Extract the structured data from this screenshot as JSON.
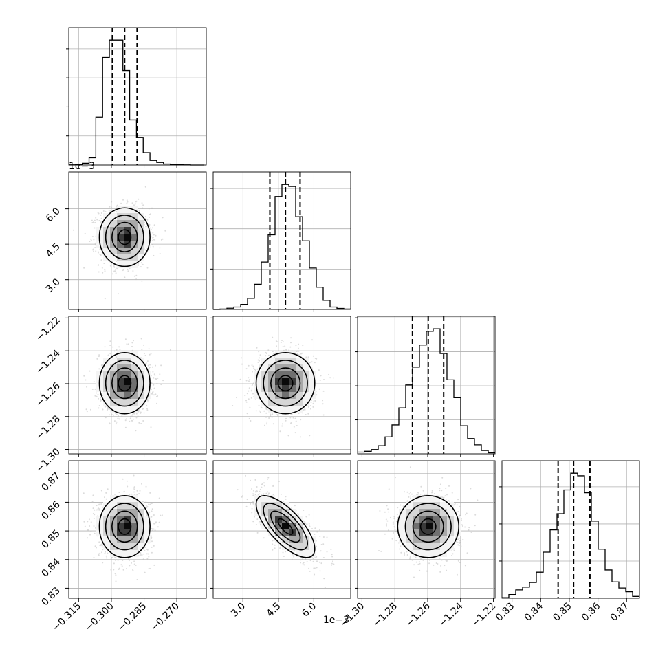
{
  "chart_data": {
    "type": "corner",
    "colors": {
      "frame": "#000000",
      "grid": "#b0b0b0",
      "points": "#bdbdbd",
      "hist": "#000000"
    },
    "grid": true,
    "parameters": [
      {
        "id": "p0",
        "range": [
          -0.3195,
          -0.2565
        ],
        "ticks": [
          -0.315,
          -0.3,
          -0.285,
          -0.27
        ],
        "tick_labels": [
          "−0.315",
          "−0.300",
          "−0.285",
          "−0.270"
        ]
      },
      {
        "id": "p1",
        "range": [
          0.00174,
          0.00756
        ],
        "ticks": [
          0.003,
          0.0045,
          0.006
        ],
        "tick_labels": [
          "3.0",
          "4.5",
          "6.0"
        ],
        "offset_label": "1e−3"
      },
      {
        "id": "p2",
        "range": [
          -1.3027,
          -1.219
        ],
        "ticks": [
          -1.3,
          -1.28,
          -1.26,
          -1.24,
          -1.22
        ],
        "tick_labels": [
          "−1.30",
          "−1.28",
          "−1.26",
          "−1.24",
          "−1.22"
        ]
      },
      {
        "id": "p3",
        "range": [
          0.8265,
          0.8745
        ],
        "ticks": [
          0.83,
          0.84,
          0.85,
          0.86,
          0.87
        ],
        "tick_labels": [
          "0.83",
          "0.84",
          "0.85",
          "0.86",
          "0.87"
        ]
      }
    ],
    "marginals": [
      {
        "param": 0,
        "quantiles": [
          -0.2995,
          -0.2939,
          -0.2882
        ],
        "edges": [
          -0.3195,
          -0.3164,
          -0.3133,
          -0.3102,
          -0.3071,
          -0.304,
          -0.3009,
          -0.2978,
          -0.2947,
          -0.2916,
          -0.2885,
          -0.2854,
          -0.2823,
          -0.2792,
          -0.2761,
          -0.273,
          -0.2699,
          -0.2668,
          -0.2637,
          -0.2606,
          -0.2575
        ],
        "counts": [
          1,
          3,
          12,
          50,
          330,
          740,
          860,
          860,
          650,
          310,
          190,
          85,
          32,
          18,
          7,
          3,
          2,
          1,
          0,
          0
        ]
      },
      {
        "param": 1,
        "quantiles": [
          0.00414,
          0.0048,
          0.00542
        ],
        "edges": [
          0.00174,
          0.002031,
          0.002322,
          0.002613,
          0.002904,
          0.003195,
          0.003486,
          0.003777,
          0.004068,
          0.004359,
          0.00465,
          0.004941,
          0.005232,
          0.005523,
          0.005814,
          0.006105,
          0.006396,
          0.006687,
          0.006978,
          0.007269,
          0.00756
        ],
        "counts": [
          0,
          2,
          6,
          12,
          25,
          55,
          125,
          235,
          370,
          560,
          620,
          610,
          460,
          340,
          205,
          110,
          45,
          12,
          5,
          2
        ]
      },
      {
        "param": 2,
        "quantiles": [
          -1.2693,
          -1.2597,
          -1.2503
        ],
        "edges": [
          -1.3027,
          -1.29852,
          -1.29433,
          -1.29015,
          -1.28596,
          -1.28178,
          -1.27759,
          -1.27341,
          -1.26922,
          -1.26504,
          -1.26085,
          -1.25667,
          -1.25248,
          -1.2483,
          -1.24411,
          -1.23993,
          -1.23574,
          -1.23156,
          -1.22737,
          -1.22319,
          -1.219
        ],
        "counts": [
          10,
          15,
          25,
          48,
          100,
          170,
          270,
          405,
          510,
          640,
          720,
          735,
          590,
          435,
          330,
          165,
          90,
          53,
          20,
          6
        ]
      },
      {
        "param": 3,
        "quantiles": [
          0.8461,
          0.8515,
          0.8572
        ],
        "edges": [
          0.8265,
          0.8289,
          0.8313,
          0.8337,
          0.8361,
          0.8385,
          0.8409,
          0.8433,
          0.8457,
          0.8481,
          0.8505,
          0.8529,
          0.8553,
          0.8577,
          0.8601,
          0.8625,
          0.8649,
          0.8673,
          0.8697,
          0.8721,
          0.8745
        ],
        "counts": [
          3,
          20,
          45,
          60,
          85,
          140,
          248,
          368,
          455,
          583,
          673,
          659,
          568,
          415,
          264,
          152,
          88,
          55,
          35,
          10
        ]
      }
    ],
    "joints": [
      {
        "x": 0,
        "y": 1,
        "mean": [
          -0.2939,
          0.0048
        ],
        "sd": [
          0.0058,
          0.00062
        ],
        "rho": 0.0,
        "contour_sigmas": [
          0.5,
          1,
          1.5,
          2
        ]
      },
      {
        "x": 0,
        "y": 2,
        "mean": [
          -0.2939,
          -1.2597
        ],
        "sd": [
          0.0058,
          0.0093
        ],
        "rho": 0.0,
        "contour_sigmas": [
          0.5,
          1,
          1.5,
          2
        ]
      },
      {
        "x": 1,
        "y": 2,
        "mean": [
          0.0048,
          -1.2597
        ],
        "sd": [
          0.00062,
          0.0093
        ],
        "rho": 0.0,
        "contour_sigmas": [
          0.5,
          1,
          1.5,
          2
        ]
      },
      {
        "x": 0,
        "y": 3,
        "mean": [
          -0.2939,
          0.8515
        ],
        "sd": [
          0.0058,
          0.0054
        ],
        "rho": 0.0,
        "contour_sigmas": [
          0.5,
          1,
          1.5,
          2
        ]
      },
      {
        "x": 1,
        "y": 3,
        "mean": [
          0.0048,
          0.8515
        ],
        "sd": [
          0.00062,
          0.0054
        ],
        "rho": -0.72,
        "contour_sigmas": [
          0.5,
          1,
          1.5,
          2
        ]
      },
      {
        "x": 2,
        "y": 3,
        "mean": [
          -1.2597,
          0.8515
        ],
        "sd": [
          0.0093,
          0.0054
        ],
        "rho": 0.0,
        "contour_sigmas": [
          0.5,
          1,
          1.5,
          2
        ]
      }
    ]
  }
}
